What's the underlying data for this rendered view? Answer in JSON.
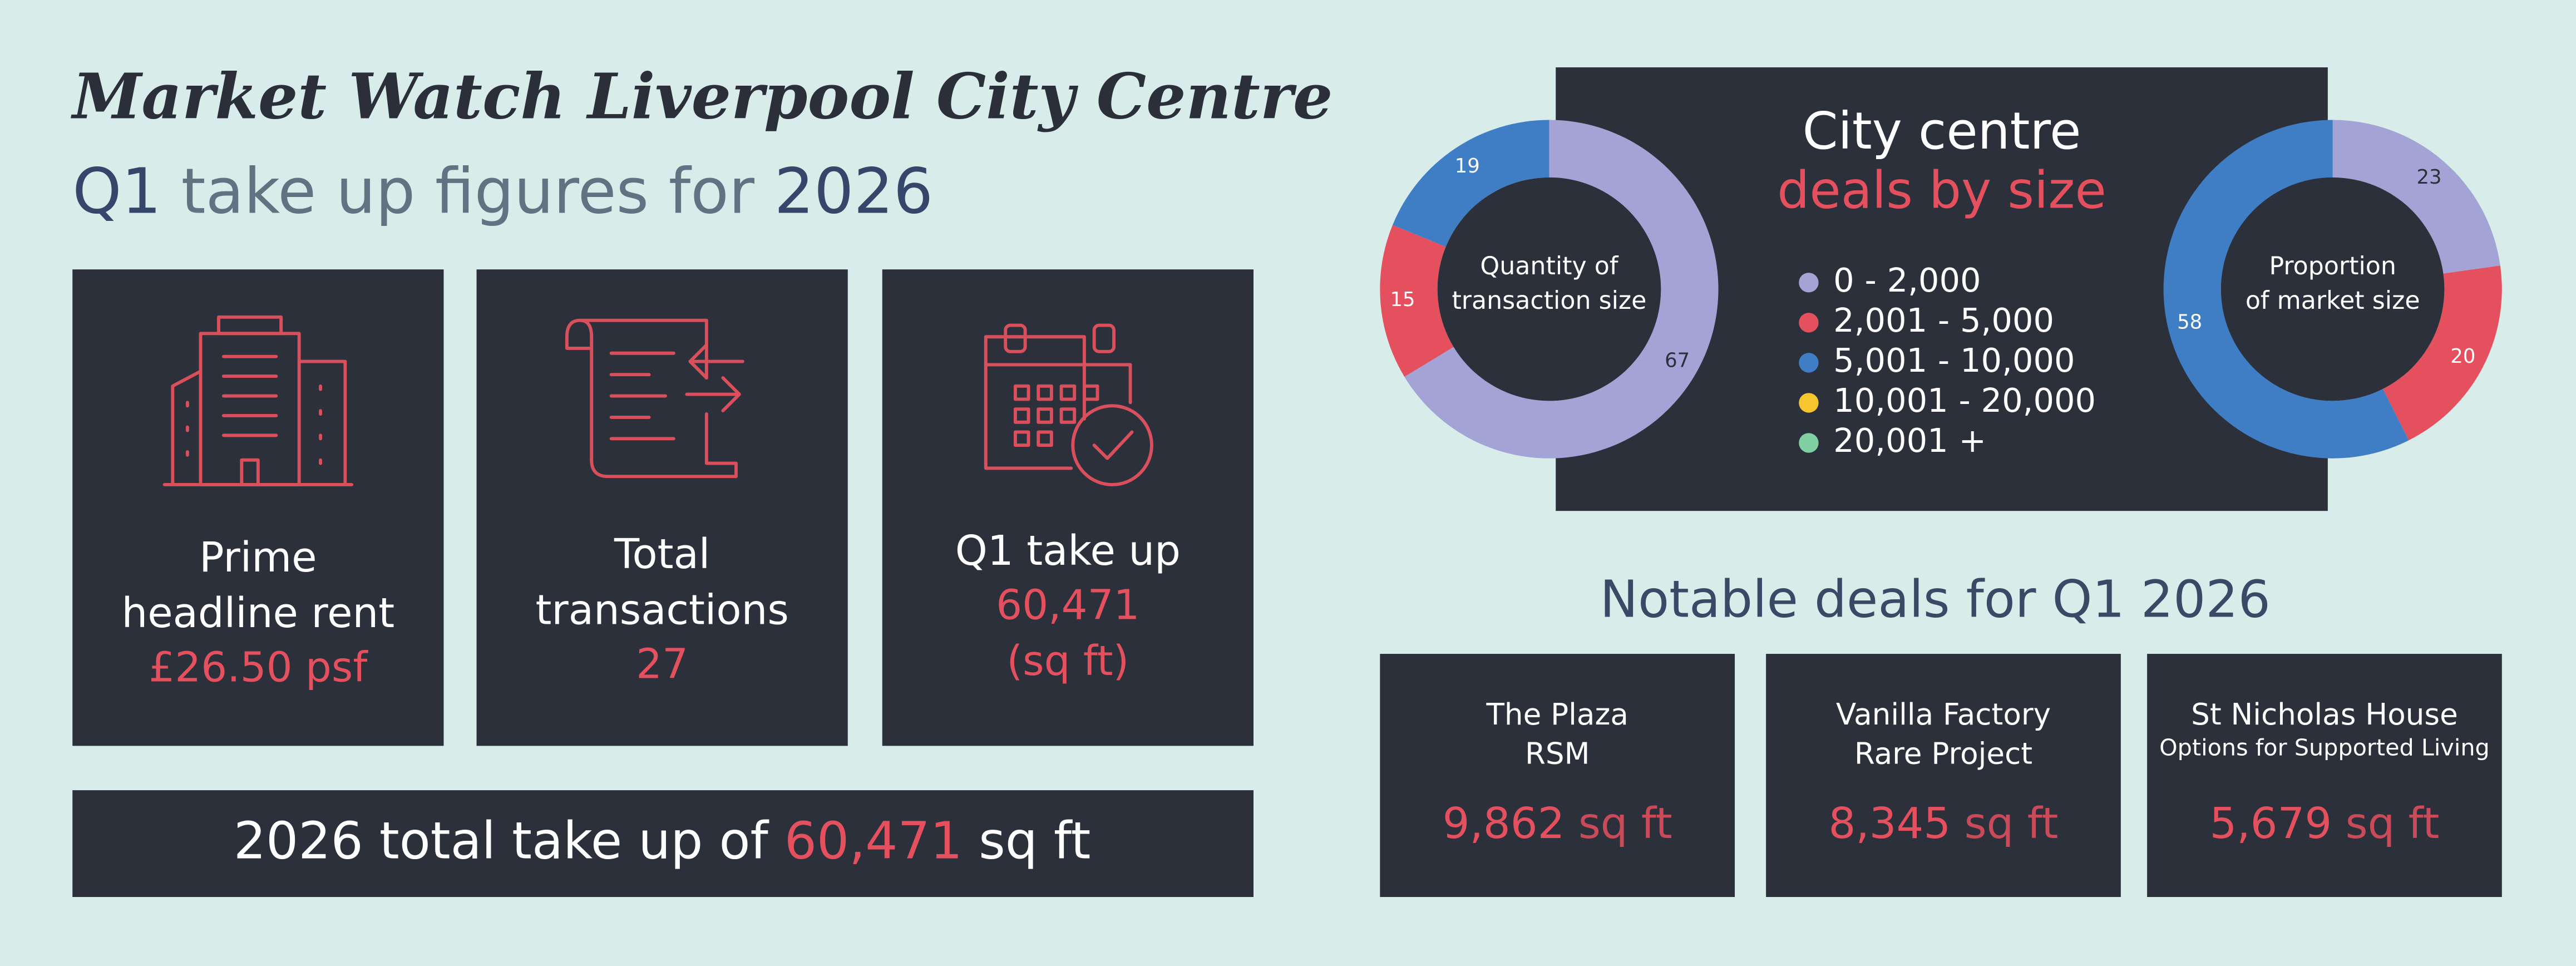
{
  "header": {
    "title": "Market Watch Liverpool City Centre",
    "subtitle": [
      "Q1",
      "take up figures for",
      "2026"
    ]
  },
  "stats": [
    {
      "label": [
        "Prime",
        "headline rent"
      ],
      "value": [
        "£26.50 psf"
      ]
    },
    {
      "label": [
        "Total",
        "transactions"
      ],
      "value": [
        "27"
      ]
    },
    {
      "label": [
        "Q1 take up"
      ],
      "value": [
        "60,471",
        "(sq ft)"
      ]
    }
  ],
  "total": {
    "text": "2026 total take up of",
    "value": "60,471",
    "unit": "sq ft"
  },
  "panel": {
    "title": "City centre",
    "subtitle": "deals by size"
  },
  "notable": {
    "title": "Notable deals for Q1 2026",
    "deals": [
      {
        "name": "The Plaza",
        "tenant": "RSM",
        "size": "9,862",
        "unit": "sq ft"
      },
      {
        "name": "Vanilla Factory",
        "tenant": "Rare Project",
        "size": "8,345",
        "unit": "sq ft"
      },
      {
        "name": "St Nicholas House",
        "tenant": "Options for Supported Living",
        "size": "5,679",
        "unit": "sq ft"
      }
    ]
  },
  "chart_data": [
    {
      "type": "pie",
      "center_label": [
        "Quantity of",
        "transaction size"
      ],
      "categories": [
        "0 - 2,000",
        "2,001 - 5,000",
        "5,001 - 10,000",
        "10,001 - 20,000",
        "20,001 +"
      ],
      "colors": [
        "#a3a3d6",
        "#e5505f",
        "#3f7ec4",
        "#f5c52e",
        "#7fcfa3"
      ],
      "values": [
        67,
        15,
        19,
        0,
        0
      ]
    },
    {
      "type": "pie",
      "center_label": [
        "Proportion",
        "of market size"
      ],
      "values": [
        23,
        20,
        58,
        0,
        0
      ]
    }
  ]
}
